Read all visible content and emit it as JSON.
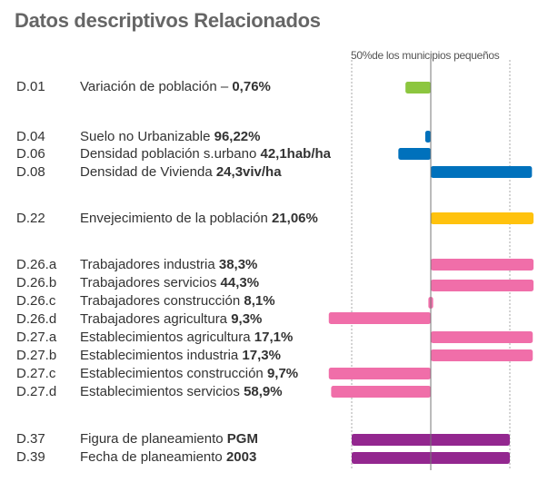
{
  "title": "Datos descriptivos Relacionados",
  "chart_data": {
    "type": "bar",
    "orientation": "horizontal-diverging",
    "title": "Datos descriptivos Relacionados",
    "reference_label": "50%de los municipios pequeños",
    "reference_note": "Center line = median (50% of small municipalities); dotted lines = range bounds at -1 and +1",
    "xlim": [
      -1.35,
      1.35
    ],
    "rows": [
      {
        "code": "D.01",
        "label": "Variación de población – ",
        "value_text": "0,76%",
        "from": -0.32,
        "to": 0,
        "color": "#8cc63f",
        "group": 0
      },
      {
        "code": "D.04",
        "label": "Suelo no Urbanizable ",
        "value_text": "96,22%",
        "from": -0.07,
        "to": 0,
        "color": "#0071bc",
        "group": 1
      },
      {
        "code": "D.06",
        "label": "Densidad  población s.urbano ",
        "value_text": "42,1hab/ha",
        "from": -0.41,
        "to": 0,
        "color": "#0071bc",
        "group": 1
      },
      {
        "code": "D.08",
        "label": "Densidad de Vivienda ",
        "value_text": "24,3viv/ha",
        "from": 0,
        "to": 1.28,
        "color": "#0071bc",
        "group": 1
      },
      {
        "code": "D.22",
        "label": "Envejecimiento de la población ",
        "value_text": "21,06%",
        "from": 0,
        "to": 1.3,
        "color": "#ffc20e",
        "group": 2
      },
      {
        "code": "D.26.a",
        "label": "Trabajadores industria  ",
        "value_text": "38,3%",
        "from": 0,
        "to": 1.3,
        "color": "#f06ea9",
        "group": 3
      },
      {
        "code": "D.26.b",
        "label": "Trabajadores servicios  ",
        "value_text": "44,3%",
        "from": 0,
        "to": 1.3,
        "color": "#f06ea9",
        "group": 3
      },
      {
        "code": "D.26.c",
        "label": "Trabajadores construcción ",
        "value_text": "8,1%",
        "from": -0.03,
        "to": 0.03,
        "color": "#f06ea9",
        "group": 3
      },
      {
        "code": "D.26.d",
        "label": "Trabajadores agricultura ",
        "value_text": "9,3%",
        "from": -1.29,
        "to": 0,
        "color": "#f06ea9",
        "group": 3
      },
      {
        "code": "D.27.a",
        "label": "Establecimientos  agricultura ",
        "value_text": "17,1%",
        "from": 0,
        "to": 1.29,
        "color": "#f06ea9",
        "group": 3
      },
      {
        "code": "D.27.b",
        "label": "Establecimientos industria ",
        "value_text": "17,3%",
        "from": 0,
        "to": 1.29,
        "color": "#f06ea9",
        "group": 3
      },
      {
        "code": "D.27.c",
        "label": "Establecimientos construcción ",
        "value_text": "9,7%",
        "from": -1.29,
        "to": 0,
        "color": "#f06ea9",
        "group": 3
      },
      {
        "code": "D.27.d",
        "label": "Establecimientos servicios ",
        "value_text": "58,9%",
        "from": -1.26,
        "to": 0,
        "color": "#f06ea9",
        "group": 3
      },
      {
        "code": "D.37",
        "label": "Figura de planeamiento ",
        "value_text": "PGM",
        "from": -1,
        "to": 1,
        "color": "#93278f",
        "group": 4
      },
      {
        "code": "D.39",
        "label": "Fecha de planeamiento ",
        "value_text": "2003",
        "from": -1,
        "to": 1,
        "color": "#93278f",
        "group": 4
      }
    ]
  }
}
